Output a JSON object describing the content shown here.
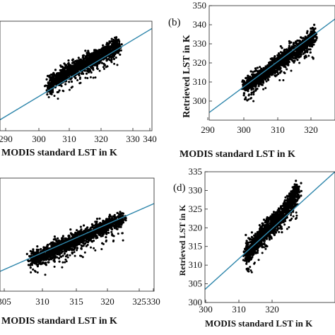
{
  "chart_data": [
    {
      "panel": "a",
      "type": "scatter",
      "panel_label": "",
      "xlabel": "MODIS standard LST in K",
      "ylabel": "",
      "xlim": [
        290,
        340
      ],
      "ylim": [
        290,
        350
      ],
      "xticks": [
        "290",
        "300",
        "310",
        "320",
        "330",
        "340"
      ],
      "yticks": [],
      "grid": false,
      "fit_line": {
        "color": "#2e86ab",
        "x": [
          290,
          340
        ],
        "y": [
          296,
          346
        ]
      },
      "scatter_core": [
        [
          306,
          315
        ],
        [
          310,
          320
        ],
        [
          314,
          324
        ],
        [
          318,
          327
        ],
        [
          322,
          331
        ],
        [
          326,
          334
        ],
        [
          329,
          337
        ]
      ],
      "scatter_x_range": [
        305,
        331
      ]
    },
    {
      "panel": "b",
      "type": "scatter",
      "panel_label": "(b)",
      "xlabel": "MODIS standard LST in K",
      "ylabel": "Retrieved LST in K",
      "xlim": [
        290,
        340
      ],
      "ylim": [
        290,
        350
      ],
      "xticks": [
        "290",
        "300",
        "310",
        "320"
      ],
      "yticks": [
        "300",
        "310",
        "320",
        "330",
        "340",
        "350"
      ],
      "grid": false,
      "fit_line": {
        "color": "#2e86ab",
        "x": [
          290,
          340
        ],
        "y": [
          294,
          343
        ]
      },
      "scatter_core": [
        [
          304,
          308
        ],
        [
          308,
          311
        ],
        [
          312,
          315
        ],
        [
          316,
          319
        ],
        [
          320,
          323
        ],
        [
          324,
          327
        ],
        [
          328,
          330
        ],
        [
          332,
          335
        ]
      ],
      "scatter_x_range": [
        303,
        333
      ]
    },
    {
      "panel": "c",
      "type": "scatter",
      "panel_label": "",
      "xlabel": "MODIS standard LST in K",
      "ylabel": "",
      "xlim": [
        305,
        330
      ],
      "ylim": [
        300,
        340
      ],
      "xticks": [
        "305",
        "310",
        "315",
        "320",
        "325",
        "330"
      ],
      "yticks": [],
      "grid": false,
      "fit_line": {
        "color": "#2e86ab",
        "x": [
          305,
          330
        ],
        "y": [
          307,
          331
        ]
      },
      "scatter_core": [
        [
          310,
          311
        ],
        [
          313,
          314
        ],
        [
          316,
          317
        ],
        [
          319,
          320
        ],
        [
          322,
          323
        ],
        [
          325,
          326
        ]
      ],
      "scatter_x_range": [
        309,
        326
      ]
    },
    {
      "panel": "d",
      "type": "scatter",
      "panel_label": "(d)",
      "xlabel": "MODIS standard LST in K",
      "ylabel": "Retrieved LST in K",
      "xlim": [
        300,
        335
      ],
      "ylim": [
        300,
        335
      ],
      "xticks": [
        "300",
        "310",
        "320"
      ],
      "yticks": [
        "300",
        "305",
        "310",
        "315",
        "320",
        "325",
        "330",
        "335"
      ],
      "grid": false,
      "fit_line": {
        "color": "#2e86ab",
        "x": [
          300,
          335
        ],
        "y": [
          303.5,
          335
        ]
      },
      "scatter_core": [
        [
          311,
          313
        ],
        [
          313,
          315
        ],
        [
          315,
          318
        ],
        [
          317,
          320
        ],
        [
          319,
          322
        ],
        [
          321,
          324
        ],
        [
          323,
          327
        ],
        [
          325,
          330
        ]
      ],
      "scatter_x_range": [
        311,
        326
      ]
    }
  ]
}
